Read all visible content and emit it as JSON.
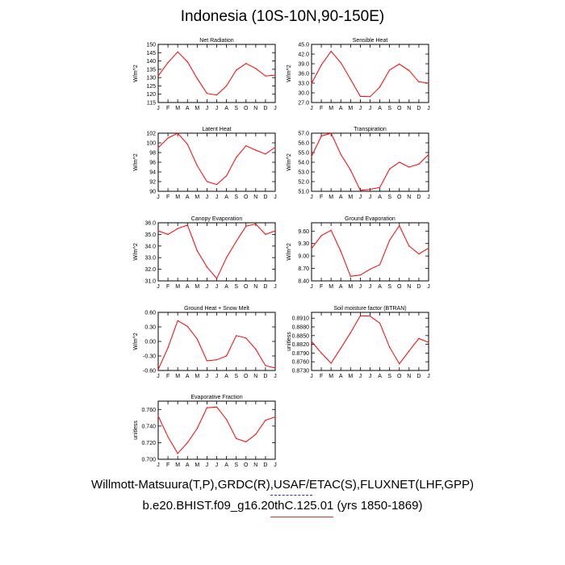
{
  "page": {
    "title": "Indonesia (10S-10N,90-150E)",
    "footer_line1": "Willmott-Matsuura(T,P),GRDC(R),USAF/ETAC(S),FLUXNET(LHF,GPP)",
    "footer_line2": "b.e20.BHIST.f09_g16.20thC.125.01 (yrs 1850-1869)",
    "footer_colors": {
      "line1_underline": "#2a2ad0",
      "line2_underline": "#e03030"
    }
  },
  "series_color": "#ff0000",
  "chart_data": [
    {
      "type": "line",
      "title": "Net Radiation",
      "xlabel": "",
      "ylabel": "W/m^2",
      "categories": [
        "J",
        "F",
        "M",
        "A",
        "M",
        "J",
        "J",
        "A",
        "S",
        "O",
        "N",
        "D",
        "J"
      ],
      "values": [
        131,
        139,
        145.5,
        139.5,
        129.5,
        120.5,
        119.5,
        125,
        134.5,
        138.5,
        135.5,
        131,
        131.5
      ],
      "ylim": [
        115,
        150
      ],
      "yticks": [
        "115",
        "120",
        "125",
        "130",
        "135",
        "140",
        "145",
        "150"
      ]
    },
    {
      "type": "line",
      "title": "Sensible Heat",
      "xlabel": "",
      "ylabel": "W/m^2",
      "categories": [
        "J",
        "F",
        "M",
        "A",
        "M",
        "J",
        "J",
        "A",
        "S",
        "O",
        "N",
        "D",
        "J"
      ],
      "values": [
        32.9,
        38.6,
        42.9,
        39.3,
        34.2,
        28.9,
        28.8,
        31.8,
        37.1,
        38.9,
        36.9,
        33.4,
        33.0
      ],
      "ylim": [
        27.0,
        45.0
      ],
      "yticks": [
        "27.0",
        "30.0",
        "33.0",
        "36.0",
        "39.0",
        "42.0",
        "45.0"
      ]
    },
    {
      "type": "line",
      "title": "Latent Heat",
      "xlabel": "",
      "ylabel": "W/m^2",
      "categories": [
        "J",
        "F",
        "M",
        "A",
        "M",
        "J",
        "J",
        "A",
        "S",
        "O",
        "N",
        "D",
        "J"
      ],
      "values": [
        99.0,
        101.0,
        102.0,
        99.7,
        95.3,
        92.0,
        91.4,
        93.2,
        97.0,
        99.4,
        98.5,
        97.7,
        99.1
      ],
      "ylim": [
        90,
        102
      ],
      "yticks": [
        "90",
        "92",
        "94",
        "96",
        "98",
        "100",
        "102"
      ]
    },
    {
      "type": "line",
      "title": "Transpiration",
      "xlabel": "",
      "ylabel": "W/m^2",
      "categories": [
        "J",
        "F",
        "M",
        "A",
        "M",
        "J",
        "J",
        "A",
        "S",
        "O",
        "N",
        "D",
        "J"
      ],
      "values": [
        54.6,
        56.7,
        57.0,
        54.8,
        53.2,
        51.1,
        51.2,
        51.4,
        53.3,
        54.0,
        53.5,
        53.8,
        54.8
      ],
      "ylim": [
        51.0,
        57.0
      ],
      "yticks": [
        "51.0",
        "52.0",
        "53.0",
        "54.0",
        "55.0",
        "56.0",
        "57.0"
      ]
    },
    {
      "type": "line",
      "title": "Canopy Evaporation",
      "xlabel": "",
      "ylabel": "W/m^2",
      "categories": [
        "J",
        "F",
        "M",
        "A",
        "M",
        "J",
        "J",
        "A",
        "S",
        "O",
        "N",
        "D",
        "J"
      ],
      "values": [
        35.3,
        35.0,
        35.5,
        35.8,
        33.6,
        32.2,
        31.2,
        33.0,
        34.4,
        35.7,
        35.9,
        35.0,
        35.3
      ],
      "ylim": [
        31.0,
        36.0
      ],
      "yticks": [
        "31.0",
        "32.0",
        "33.0",
        "34.0",
        "35.0",
        "36.0"
      ]
    },
    {
      "type": "line",
      "title": "Ground Evaporation",
      "xlabel": "",
      "ylabel": "W/m^2",
      "categories": [
        "J",
        "F",
        "M",
        "A",
        "M",
        "J",
        "J",
        "A",
        "S",
        "O",
        "N",
        "D",
        "J"
      ],
      "values": [
        9.18,
        9.49,
        9.62,
        9.11,
        8.51,
        8.54,
        8.68,
        8.79,
        9.38,
        9.73,
        9.24,
        9.05,
        9.19
      ],
      "ylim": [
        8.4,
        9.8
      ],
      "yticks": [
        "8.40",
        "8.70",
        "9.00",
        "9.30",
        "9.60"
      ]
    },
    {
      "type": "line",
      "title": "Ground Heat + Snow Melt",
      "xlabel": "",
      "ylabel": "W/m^2",
      "categories": [
        "J",
        "F",
        "M",
        "A",
        "M",
        "J",
        "J",
        "A",
        "S",
        "O",
        "N",
        "D",
        "J"
      ],
      "values": [
        -0.58,
        -0.13,
        0.43,
        0.31,
        0.05,
        -0.4,
        -0.38,
        -0.3,
        0.12,
        0.07,
        -0.16,
        -0.5,
        -0.55
      ],
      "ylim": [
        -0.6,
        0.6
      ],
      "yticks": [
        "-0.60",
        "-0.30",
        "0.00",
        "0.30",
        "0.60"
      ]
    },
    {
      "type": "line",
      "title": "Soil moisture factor (BTRAN)",
      "xlabel": "",
      "ylabel": "unitless",
      "categories": [
        "J",
        "F",
        "M",
        "A",
        "M",
        "J",
        "J",
        "A",
        "S",
        "O",
        "N",
        "D",
        "J"
      ],
      "values": [
        0.883,
        0.879,
        0.8755,
        0.8807,
        0.886,
        0.8918,
        0.8917,
        0.8893,
        0.881,
        0.8753,
        0.8797,
        0.884,
        0.8827
      ],
      "ylim": [
        0.873,
        0.893
      ],
      "yticks": [
        "0.8730",
        "0.8760",
        "0.8790",
        "0.8820",
        "0.8850",
        "0.8880",
        "0.8910"
      ]
    },
    {
      "type": "line",
      "title": "Evaporative Fraction",
      "xlabel": "",
      "ylabel": "unitless",
      "categories": [
        "J",
        "F",
        "M",
        "A",
        "M",
        "J",
        "J",
        "A",
        "S",
        "O",
        "N",
        "D",
        "J"
      ],
      "values": [
        0.752,
        0.727,
        0.707,
        0.72,
        0.737,
        0.762,
        0.763,
        0.748,
        0.725,
        0.721,
        0.73,
        0.747,
        0.751
      ],
      "ylim": [
        0.7,
        0.77
      ],
      "yticks": [
        "0.700",
        "0.720",
        "0.740",
        "0.760"
      ]
    }
  ]
}
